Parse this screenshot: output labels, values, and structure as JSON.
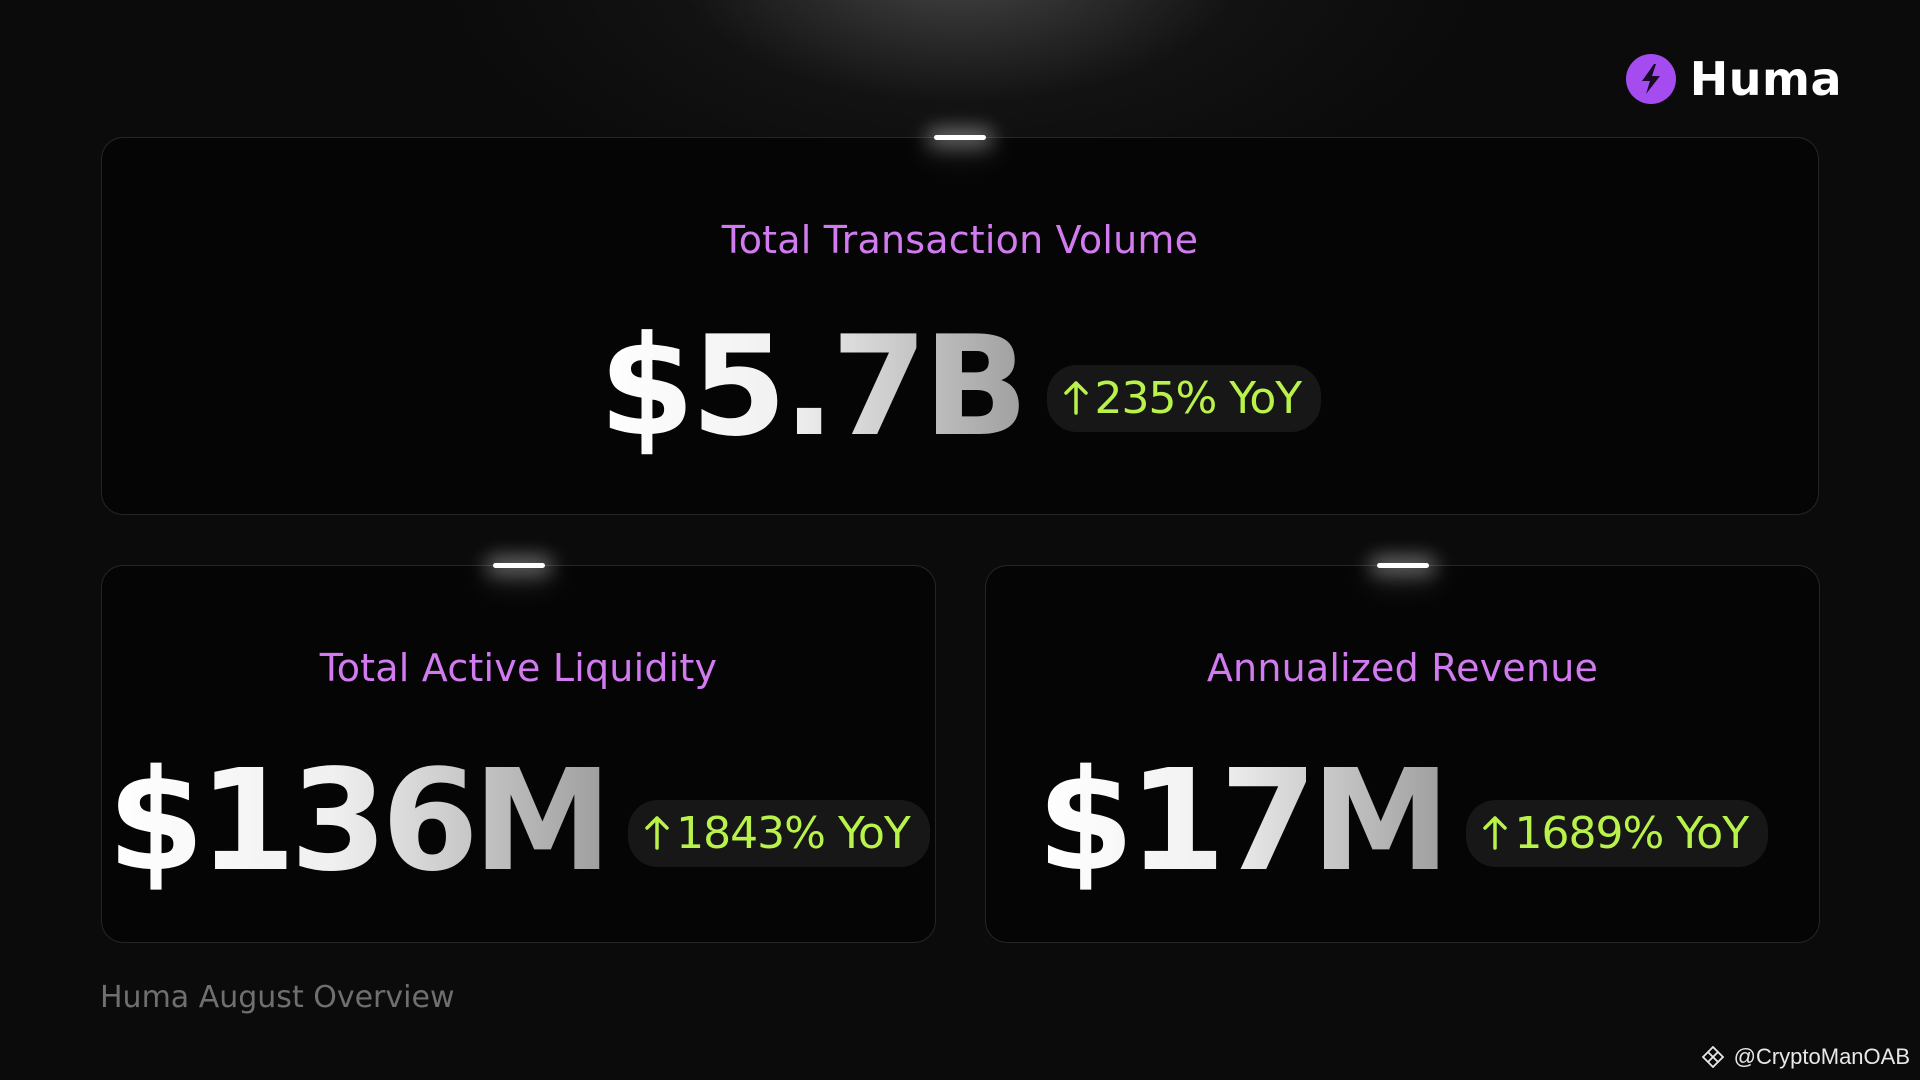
{
  "brand": {
    "name": "Huma",
    "logo_icon": "huma-bolt-icon",
    "accent": "#a54cf0"
  },
  "metrics": [
    {
      "title": "Total Transaction Volume",
      "value": "$5.7B",
      "growth": "235% YoY",
      "growth_icon": "arrow-up-icon"
    },
    {
      "title": "Total Active Liquidity",
      "value": "$136M",
      "growth": "1843% YoY",
      "growth_icon": "arrow-up-icon"
    },
    {
      "title": "Annualized Revenue",
      "value": "$17M",
      "growth": "1689% YoY",
      "growth_icon": "arrow-up-icon"
    }
  ],
  "colors": {
    "title": "#d27bf0",
    "growth": "#b8f24a",
    "background": "#0b0b0b"
  },
  "footer": {
    "caption": "Huma August Overview"
  },
  "watermark": {
    "text": "@CryptoManOAB"
  }
}
